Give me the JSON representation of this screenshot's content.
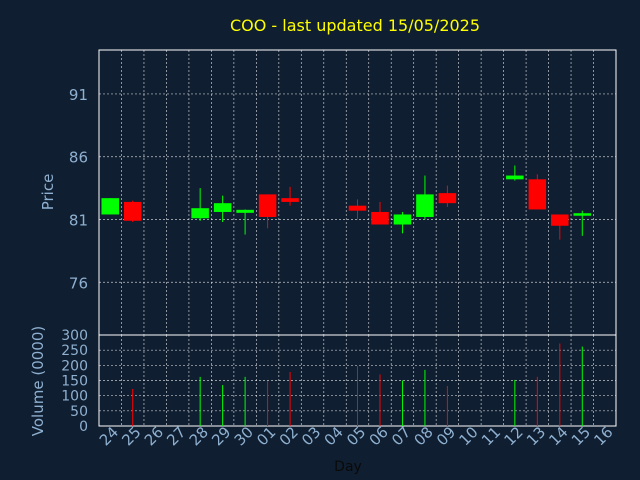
{
  "chart_data": [
    {
      "type": "candlestick",
      "title": "COO - last updated 15/05/2025",
      "ylabel": "Price",
      "ylim": [
        71.8,
        94.5
      ],
      "yticks": [
        76,
        81,
        86,
        91
      ],
      "grid": true,
      "colors": {
        "up": "#00ff00",
        "down": "#ff0000",
        "title": "#ffff00",
        "axis_text": "#8fb0d0",
        "grid": "#ffffff",
        "background": "#0f1e30"
      },
      "x": [
        "24",
        "25",
        "26",
        "27",
        "28",
        "29",
        "30",
        "01",
        "02",
        "03",
        "04",
        "05",
        "06",
        "07",
        "08",
        "09",
        "10",
        "11",
        "12",
        "13",
        "14",
        "15",
        "16"
      ],
      "candles": [
        {
          "x": "24",
          "open": 81.4,
          "high": 82.7,
          "low": 81.4,
          "close": 82.7
        },
        {
          "x": "25",
          "open": 82.4,
          "high": 82.5,
          "low": 80.8,
          "close": 80.9
        },
        {
          "x": "28",
          "open": 81.1,
          "high": 83.5,
          "low": 80.9,
          "close": 81.9
        },
        {
          "x": "29",
          "open": 81.6,
          "high": 82.9,
          "low": 80.8,
          "close": 82.3
        },
        {
          "x": "30",
          "open": 81.6,
          "high": 81.8,
          "low": 79.8,
          "close": 81.7
        },
        {
          "x": "01",
          "open": 83.0,
          "high": 83.0,
          "low": 80.3,
          "close": 81.2
        },
        {
          "x": "02",
          "open": 82.7,
          "high": 83.6,
          "low": 82.1,
          "close": 82.4
        },
        {
          "x": "05",
          "open": 82.1,
          "high": 82.6,
          "low": 81.0,
          "close": 81.7
        },
        {
          "x": "06",
          "open": 81.6,
          "high": 82.4,
          "low": 80.6,
          "close": 80.6
        },
        {
          "x": "07",
          "open": 80.6,
          "high": 81.6,
          "low": 79.9,
          "close": 81.4
        },
        {
          "x": "08",
          "open": 81.2,
          "high": 84.5,
          "low": 81.0,
          "close": 83.0
        },
        {
          "x": "09",
          "open": 83.1,
          "high": 83.7,
          "low": 82.0,
          "close": 82.3
        },
        {
          "x": "12",
          "open": 84.2,
          "high": 85.3,
          "low": 84.1,
          "close": 84.5
        },
        {
          "x": "13",
          "open": 84.2,
          "high": 84.6,
          "low": 81.8,
          "close": 81.8
        },
        {
          "x": "14",
          "open": 81.4,
          "high": 81.4,
          "low": 79.4,
          "close": 80.5
        },
        {
          "x": "15",
          "open": 81.3,
          "high": 81.7,
          "low": 79.7,
          "close": 81.5
        }
      ]
    },
    {
      "type": "bar",
      "ylabel": "Volume (0000)",
      "xlabel": "Day",
      "ylim": [
        0,
        300
      ],
      "yticks": [
        0,
        50,
        100,
        150,
        200,
        250,
        300
      ],
      "grid": true,
      "x": [
        "24",
        "25",
        "26",
        "27",
        "28",
        "29",
        "30",
        "01",
        "02",
        "03",
        "04",
        "05",
        "06",
        "07",
        "08",
        "09",
        "10",
        "11",
        "12",
        "13",
        "14",
        "15",
        "16"
      ],
      "volumes": [
        {
          "x": "25",
          "value": 122,
          "dir": "down"
        },
        {
          "x": "28",
          "value": 162,
          "dir": "up"
        },
        {
          "x": "29",
          "value": 135,
          "dir": "up"
        },
        {
          "x": "30",
          "value": 162,
          "dir": "up"
        },
        {
          "x": "01",
          "value": 148,
          "dir": "down"
        },
        {
          "x": "02",
          "value": 178,
          "dir": "down"
        },
        {
          "x": "05",
          "value": 198,
          "dir": "down"
        },
        {
          "x": "06",
          "value": 170,
          "dir": "down"
        },
        {
          "x": "07",
          "value": 150,
          "dir": "up"
        },
        {
          "x": "08",
          "value": 185,
          "dir": "up"
        },
        {
          "x": "09",
          "value": 132,
          "dir": "down"
        },
        {
          "x": "12",
          "value": 152,
          "dir": "up"
        },
        {
          "x": "13",
          "value": 162,
          "dir": "down"
        },
        {
          "x": "14",
          "value": 272,
          "dir": "down"
        },
        {
          "x": "15",
          "value": 262,
          "dir": "up"
        }
      ]
    }
  ]
}
